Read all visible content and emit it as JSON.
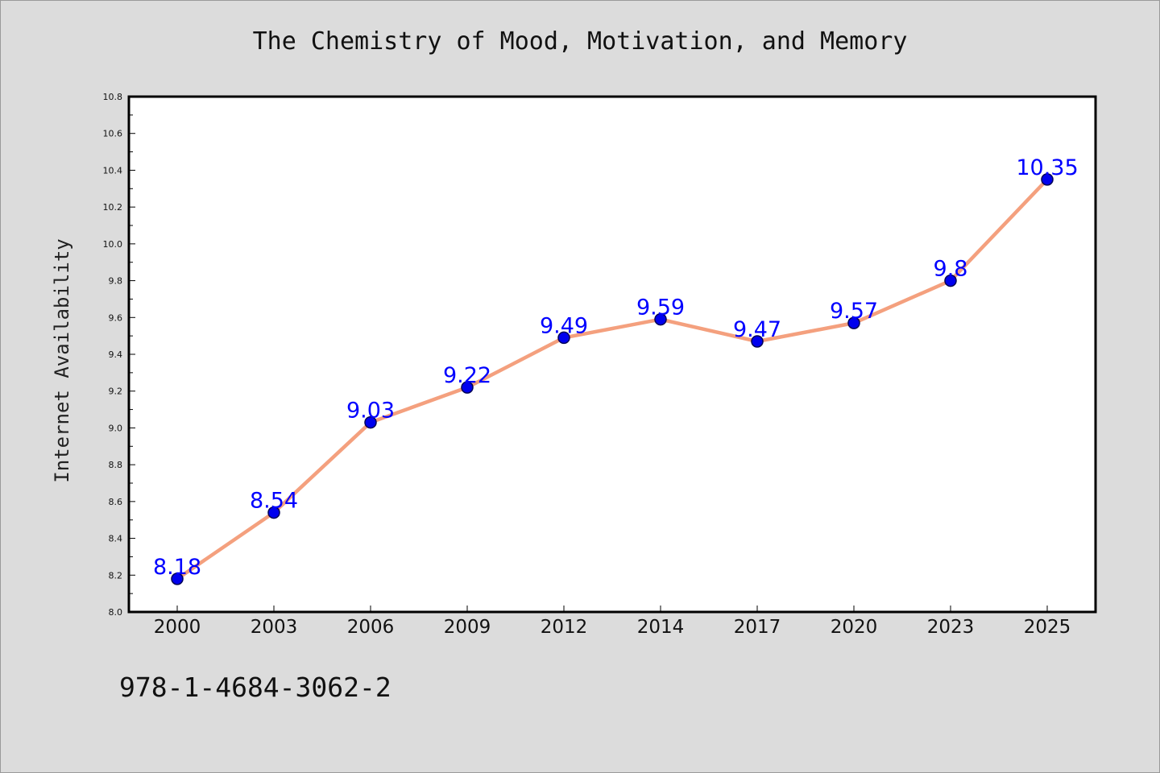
{
  "chart_data": {
    "type": "line",
    "title": "The Chemistry of Mood, Motivation, and Memory",
    "xlabel": "",
    "ylabel": "Internet Availability",
    "categories": [
      "2000",
      "2003",
      "2006",
      "2009",
      "2012",
      "2014",
      "2017",
      "2020",
      "2023",
      "2025"
    ],
    "values": [
      8.18,
      8.54,
      9.03,
      9.22,
      9.49,
      9.59,
      9.47,
      9.57,
      9.8,
      10.35
    ],
    "data_labels": [
      "8.18",
      "8.54",
      "9.03",
      "9.22",
      "9.49",
      "9.59",
      "9.47",
      "9.57",
      "9.8",
      "10.35"
    ],
    "ylim": [
      8.0,
      10.8
    ],
    "y_ticks": [
      "8.0",
      "8.2",
      "8.4",
      "8.6",
      "8.8",
      "9.0",
      "9.2",
      "9.4",
      "9.6",
      "9.8",
      "10.0",
      "10.2",
      "10.4",
      "10.6",
      "10.8"
    ],
    "grid": false,
    "legend": "none",
    "colors": {
      "line": "#f4a07e",
      "marker": "#0000ee",
      "marker_edge": "#000055",
      "data_label": "#0000ff",
      "plot_bg": "#ffffff",
      "page_bg": "#dcdcdc"
    }
  },
  "footer": {
    "code": "978-1-4684-3062-2"
  }
}
